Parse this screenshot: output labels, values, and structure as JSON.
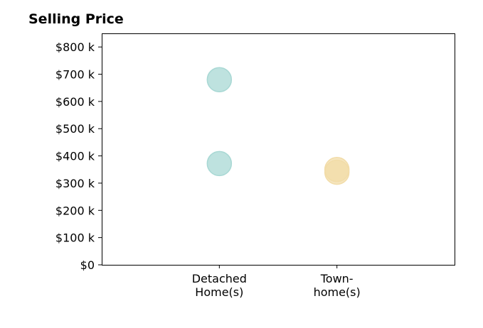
{
  "chart_data": {
    "type": "scatter",
    "title": "Selling Price",
    "categories": [
      "Detached\nHome(s)",
      "Town-\nhome(s)"
    ],
    "yticks": [
      "$0",
      "$100 k",
      "$200 k",
      "$300 k",
      "$400 k",
      "$500 k",
      "$600 k",
      "$700 k",
      "$800 k"
    ],
    "ylim": [
      0,
      850
    ],
    "y_tick_values": [
      0,
      100,
      200,
      300,
      400,
      500,
      600,
      700,
      800
    ],
    "xlim": [
      -1,
      2
    ],
    "grid": false,
    "series": [
      {
        "category_index": 0,
        "color": "#a8d8d4",
        "values": [
          680,
          372
        ]
      },
      {
        "category_index": 1,
        "color": "#f2dca8",
        "values": [
          350,
          340
        ]
      }
    ]
  }
}
